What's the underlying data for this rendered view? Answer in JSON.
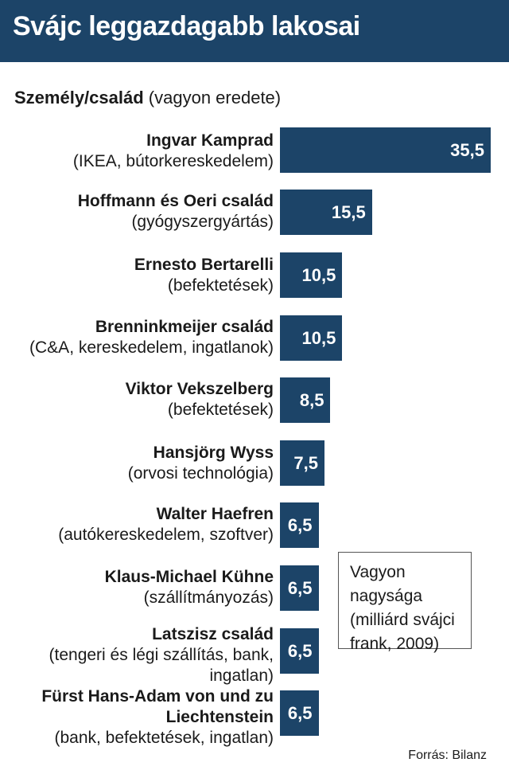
{
  "title": "Svájc leggazdagabb lakosai",
  "header": {
    "bold": "Személy/család",
    "normal": "(vagyon eredete)"
  },
  "legend": "Vagyon nagysága (milliárd svájci frank, 2009)",
  "source": "Forrás: Bilanz",
  "colors": {
    "bar": "#1c4468",
    "title_bg": "#1c4468"
  },
  "chart_data": {
    "type": "bar",
    "orientation": "horizontal",
    "title": "Svájc leggazdagabb lakosai",
    "unit": "milliárd svájci frank, 2009",
    "categories": [
      {
        "name": "Ingvar Kamprad",
        "origin": "(IKEA, bútorkereskedelem)"
      },
      {
        "name": "Hoffmann és Oeri család",
        "origin": "(gyógyszergyártás)"
      },
      {
        "name": "Ernesto Bertarelli",
        "origin": "(befektetések)"
      },
      {
        "name": "Brenninkmeijer család",
        "origin": "(C&A, kereskedelem, ingatlanok)"
      },
      {
        "name": "Viktor Vekszelberg",
        "origin": "(befektetések)"
      },
      {
        "name": "Hansjörg Wyss",
        "origin": "(orvosi technológia)"
      },
      {
        "name": "Walter Haefren",
        "origin": "(autókereskedelem, szoftver)"
      },
      {
        "name": "Klaus-Michael Kühne",
        "origin": "(szállítmányozás)"
      },
      {
        "name": "Latszisz család",
        "origin": "(tengeri és légi szállítás, bank, ingatlan)"
      },
      {
        "name": "Fürst Hans-Adam von und zu Liechtenstein",
        "origin": "(bank, befektetések, ingatlan)"
      }
    ],
    "values": [
      35.5,
      15.5,
      10.5,
      10.5,
      8.5,
      7.5,
      6.5,
      6.5,
      6.5,
      6.5
    ],
    "value_labels": [
      "35,5",
      "15,5",
      "10,5",
      "10,5",
      "8,5",
      "7,5",
      "6,5",
      "6,5",
      "6,5",
      "6,5"
    ],
    "xlim": [
      0,
      35.5
    ]
  }
}
